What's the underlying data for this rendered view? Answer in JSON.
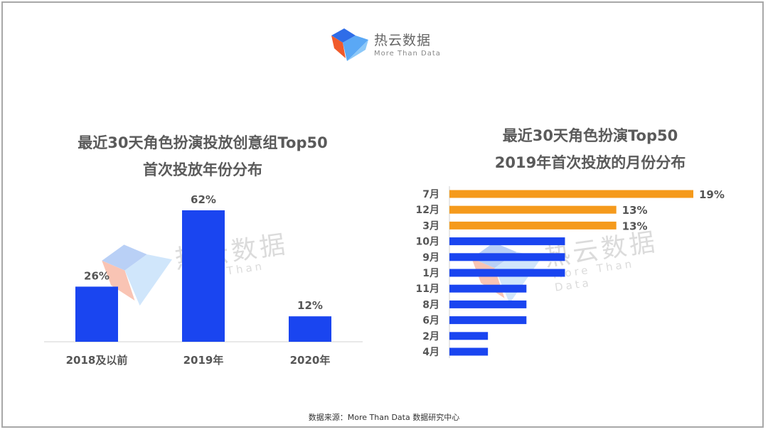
{
  "brand": {
    "name": "热云数据",
    "tagline": "More Than Data"
  },
  "colors": {
    "blue": "#1a45f0",
    "orange": "#f59a1c",
    "text": "#555555"
  },
  "chart_data": [
    {
      "type": "bar",
      "title": [
        "最近30天角色扮演投放创意组Top50",
        "首次投放年份分布"
      ],
      "categories": [
        "2018及以前",
        "2019年",
        "2020年"
      ],
      "values": [
        26,
        62,
        12
      ],
      "value_labels": [
        "26%",
        "62%",
        "12%"
      ],
      "unit": "%",
      "ylim": [
        0,
        62
      ]
    },
    {
      "type": "bar",
      "orientation": "horizontal",
      "title": [
        "最近30天角色扮演Top50",
        "2019年首次投放的月份分布"
      ],
      "categories": [
        "7月",
        "12月",
        "3月",
        "10月",
        "9月",
        "1月",
        "11月",
        "8月",
        "6月",
        "2月",
        "4月"
      ],
      "values": [
        19,
        13,
        13,
        9,
        9,
        9,
        6,
        6,
        6,
        3,
        3
      ],
      "value_labels": [
        "19%",
        "13%",
        "13%",
        "",
        "",
        "",
        "",
        "",
        "",
        "",
        ""
      ],
      "highlight": [
        true,
        true,
        true,
        false,
        false,
        false,
        false,
        false,
        false,
        false,
        false
      ],
      "unit": "%",
      "xlim": [
        0,
        19
      ]
    }
  ],
  "footer": {
    "source": "数据来源：More Than Data 数据研究中心"
  }
}
